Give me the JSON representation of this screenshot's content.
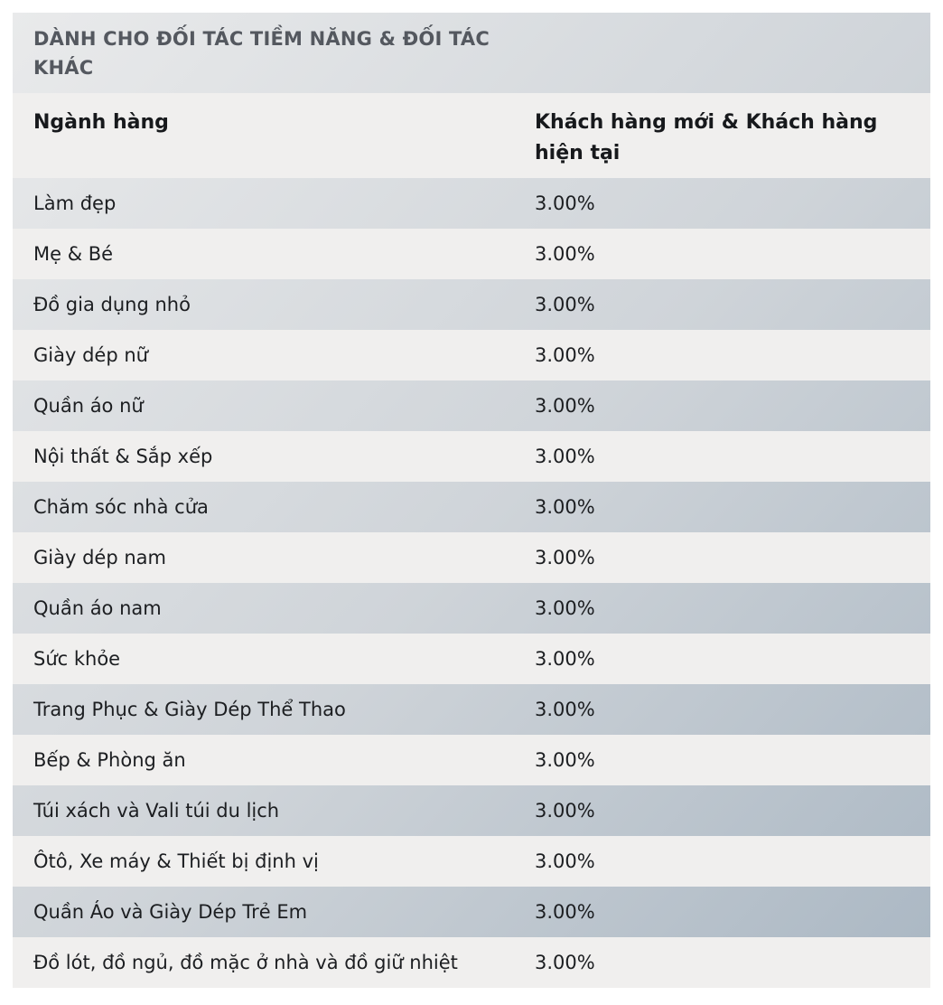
{
  "table": {
    "title": "DÀNH CHO ĐỐI TÁC TIỀM NĂNG & ĐỐI TÁC KHÁC",
    "header": {
      "category": "Ngành hàng",
      "rate_line1": "Khách hàng mới & Khách hàng",
      "rate_line2": "hiện tại"
    },
    "rows": [
      {
        "category": "Làm đẹp",
        "rate": "3.00%"
      },
      {
        "category": "Mẹ & Bé",
        "rate": "3.00%"
      },
      {
        "category": "Đồ gia dụng nhỏ",
        "rate": "3.00%"
      },
      {
        "category": "Giày dép nữ",
        "rate": "3.00%"
      },
      {
        "category": "Quần áo nữ",
        "rate": "3.00%"
      },
      {
        "category": "Nội thất & Sắp xếp",
        "rate": "3.00%"
      },
      {
        "category": "Chăm sóc nhà cửa",
        "rate": "3.00%"
      },
      {
        "category": "Giày dép nam",
        "rate": "3.00%"
      },
      {
        "category": "Quần áo nam",
        "rate": "3.00%"
      },
      {
        "category": "Sức khỏe",
        "rate": "3.00%"
      },
      {
        "category": "Trang Phục & Giày Dép Thể Thao",
        "rate": "3.00%"
      },
      {
        "category": "Bếp & Phòng ăn",
        "rate": "3.00%"
      },
      {
        "category": "Túi xách và Vali túi du lịch",
        "rate": "3.00%"
      },
      {
        "category": "Ôtô, Xe máy & Thiết bị định vị",
        "rate": "3.00%"
      },
      {
        "category": "Quần Áo và Giày Dép Trẻ Em",
        "rate": "3.00%"
      },
      {
        "category": "Đồ lót, đồ ngủ, đồ mặc ở nhà và đồ giữ nhiệt",
        "rate": "3.00%"
      }
    ]
  },
  "colors": {
    "title_text": "#54585f",
    "header_text": "#17191c",
    "row_text": "#1c1e21",
    "light_row": "#f0efee",
    "gradient_start": "#e9eaeb",
    "gradient_mid": "#cfd4d9",
    "gradient_end": "#aab7c3"
  }
}
